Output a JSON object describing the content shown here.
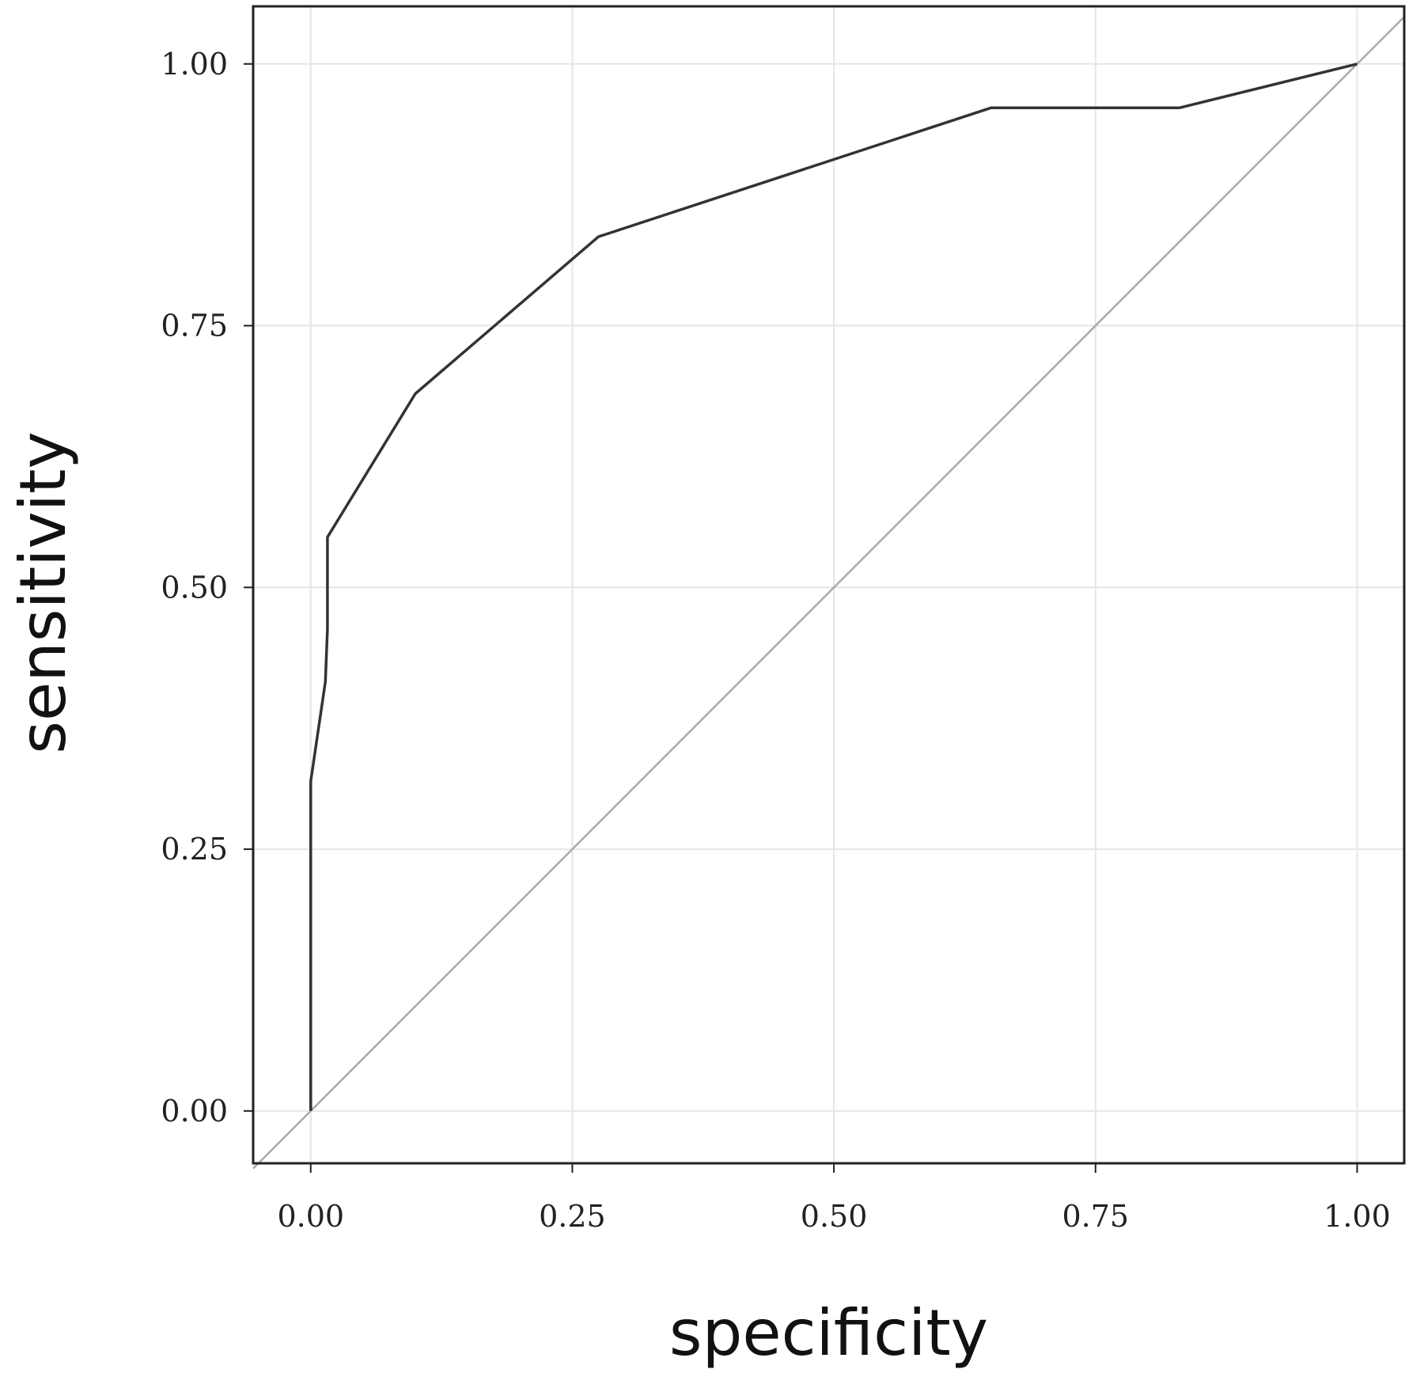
{
  "chart_data": {
    "type": "line",
    "title": "",
    "xlabel": "specificity",
    "ylabel": "sensitivity",
    "xlim": [
      -0.055,
      1.045
    ],
    "ylim": [
      -0.05,
      1.055
    ],
    "x_ticks": [
      "0.00",
      "0.25",
      "0.50",
      "0.75",
      "1.00"
    ],
    "y_ticks": [
      "0.00",
      "0.25",
      "0.50",
      "0.75",
      "1.00"
    ],
    "x_tick_values": [
      0,
      0.25,
      0.5,
      0.75,
      1.0
    ],
    "y_tick_values": [
      0,
      0.25,
      0.5,
      0.75,
      1.0
    ],
    "grid": true,
    "series": [
      {
        "x": [
          0.0,
          0.0,
          0.014,
          0.016,
          0.016,
          0.1,
          0.275,
          0.65,
          0.83,
          1.0
        ],
        "y": [
          0.0,
          0.315,
          0.41,
          0.46,
          0.548,
          0.685,
          0.835,
          0.958,
          0.958,
          1.0
        ]
      }
    ],
    "reference_line": {
      "x": [
        -0.055,
        1.045
      ],
      "y": [
        -0.055,
        1.045
      ]
    },
    "colors": {
      "roc_curve": "#333333",
      "reference_line": "#aaaaaa",
      "grid": "#e6e6e6",
      "frame": "#222222"
    }
  }
}
